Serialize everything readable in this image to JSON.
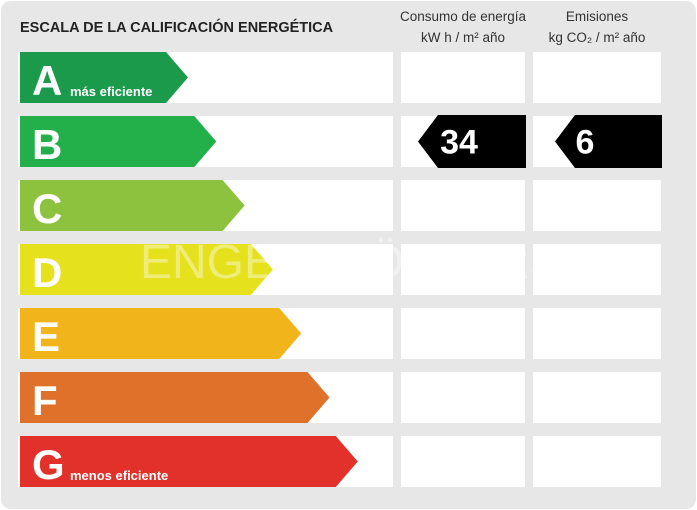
{
  "header": {
    "title": "ESCALA DE LA CALIFICACIÓN ENERGÉTICA",
    "consumption": [
      "Consumo de energía",
      "kW h  / m² año"
    ],
    "emissions": [
      "Emisiones",
      "kg CO₂  / m² año"
    ]
  },
  "watermark": "ENGEL&VÖLKERS",
  "rows": [
    {
      "letter": "A",
      "note": "más eficiente",
      "color": "#1b9a4b"
    },
    {
      "letter": "B",
      "color": "#23b04b",
      "consumption": 34,
      "emissions": 6
    },
    {
      "letter": "C",
      "color": "#8dc23f"
    },
    {
      "letter": "D",
      "color": "#e5e11d"
    },
    {
      "letter": "E",
      "color": "#f1b41b"
    },
    {
      "letter": "F",
      "color": "#df712a"
    },
    {
      "letter": "G",
      "note": "menos eficiente",
      "color": "#e2302b"
    }
  ]
}
